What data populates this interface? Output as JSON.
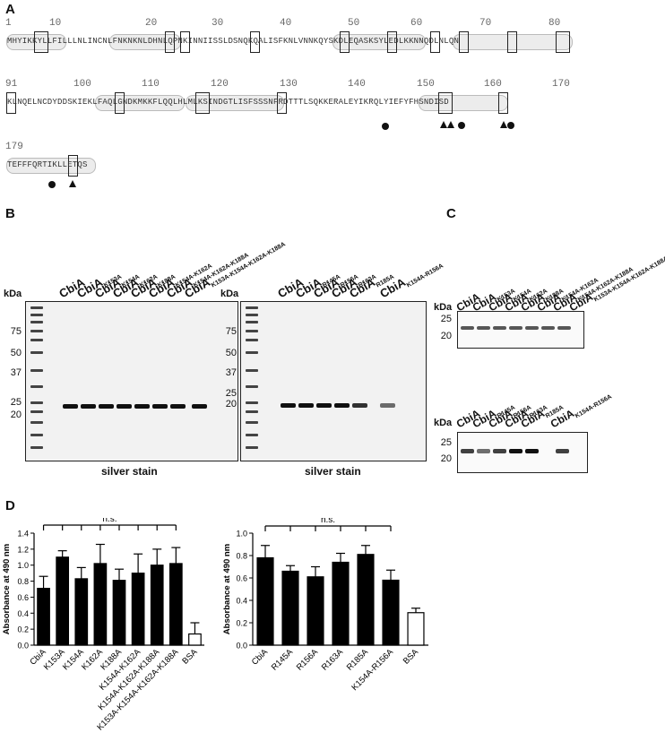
{
  "panels": {
    "a": "A",
    "b": "B",
    "c": "C",
    "d": "D"
  },
  "sequence": {
    "row1": {
      "numbers": [
        "1",
        "10",
        "20",
        "30",
        "40",
        "50",
        "60",
        "70",
        "80"
      ],
      "text": "MHYIKKYLLFILLLNLINCNLFNKNKNLDHNLQPNKINNIISSLDSNQKQALISFKNLVNNKQYSKDLEQASKSYLEDLKKNNQDLNLQN"
    },
    "row2": {
      "numbers": [
        "91",
        "100",
        "110",
        "120",
        "130",
        "140",
        "150",
        "160",
        "170"
      ],
      "text": "KLNQELNCDYDDSKIEKLFAQLGNDKMKKFLQQLHLMLKSINDGTLISFSSSNFRDTTTLSQKKERALEYIKRQLYIEFYFHSNDISD"
    },
    "row3": {
      "numbers": [
        "179"
      ],
      "text": "TEFFFQRTIKLLETQS"
    }
  },
  "blots": {
    "kda_label": "kDa",
    "silver_caption": "silver stain",
    "b_left": {
      "lanes": [
        "CbiA",
        "CbiA",
        "CbiA",
        "CbiA",
        "CbiA",
        "CbiA",
        "CbiA",
        "CbiA"
      ],
      "subs": [
        "",
        "K153A",
        "K154A",
        "K162A",
        "K188A",
        "K154A-K162A",
        "K154A-K162A-K188A",
        "K153A-K154A-K162A-K188A"
      ],
      "markers": [
        "75",
        "50",
        "37",
        "25",
        "20"
      ]
    },
    "b_right": {
      "lanes": [
        "CbiA",
        "CbiA",
        "CbiA",
        "CbiA",
        "CbiA",
        "CbiA"
      ],
      "subs": [
        "",
        "R145A",
        "R156A",
        "R163A",
        "R185A",
        "K154A-R156A"
      ],
      "markers": [
        "75",
        "50",
        "37",
        "25",
        "20"
      ]
    },
    "c_top": {
      "lanes": [
        "CbiA",
        "CbiA",
        "CbiA",
        "CbiA",
        "CbiA",
        "CbiA",
        "CbiA",
        "CbiA"
      ],
      "subs": [
        "",
        "K153A",
        "K154A",
        "K162A",
        "K188A",
        "K154A-K162A",
        "K154A-K162A-K188A",
        "K153A-K154A-K162A-K188A"
      ],
      "markers": [
        "25",
        "20"
      ]
    },
    "c_bottom": {
      "lanes": [
        "CbiA",
        "CbiA",
        "CbiA",
        "CbiA",
        "CbiA",
        "CbiA"
      ],
      "subs": [
        "",
        "R145A",
        "R156A",
        "R163A",
        "R185A",
        "K154A-R156A"
      ],
      "markers": [
        "25",
        "20"
      ]
    }
  },
  "chart_data": [
    {
      "type": "bar",
      "ylabel": "Absorbance at 490 nm",
      "ylim": [
        0,
        1.4
      ],
      "yticks": [
        "0.0",
        "0.2",
        "0.4",
        "0.6",
        "0.8",
        "1.0",
        "1.2",
        "1.4"
      ],
      "categories": [
        "CbiA",
        "K153A",
        "K154A",
        "K162A",
        "K188A",
        "K154A-K162A",
        "K154A-K162A-K188A",
        "K153A-K154A-K162A-K188A",
        "BSA"
      ],
      "values": [
        0.71,
        1.1,
        0.83,
        1.02,
        0.81,
        0.9,
        1.0,
        1.02,
        0.14
      ],
      "errors": [
        0.15,
        0.08,
        0.14,
        0.24,
        0.14,
        0.24,
        0.2,
        0.2,
        0.14
      ],
      "fills": [
        "#000000",
        "#000000",
        "#000000",
        "#000000",
        "#000000",
        "#000000",
        "#000000",
        "#000000",
        "#ffffff"
      ],
      "annotation": "n.s."
    },
    {
      "type": "bar",
      "ylabel": "Absorbance at 490 nm",
      "ylim": [
        0,
        1.0
      ],
      "yticks": [
        "0.0",
        "0.2",
        "0.4",
        "0.6",
        "0.8",
        "1.0"
      ],
      "categories": [
        "CbiA",
        "R145A",
        "R156A",
        "R163A",
        "R185A",
        "K154A-R156A",
        "BSA"
      ],
      "values": [
        0.78,
        0.66,
        0.61,
        0.74,
        0.81,
        0.58,
        0.29
      ],
      "errors": [
        0.11,
        0.05,
        0.09,
        0.08,
        0.08,
        0.09,
        0.04
      ],
      "fills": [
        "#000000",
        "#000000",
        "#000000",
        "#000000",
        "#000000",
        "#000000",
        "#ffffff"
      ],
      "annotation": "n.s."
    }
  ]
}
